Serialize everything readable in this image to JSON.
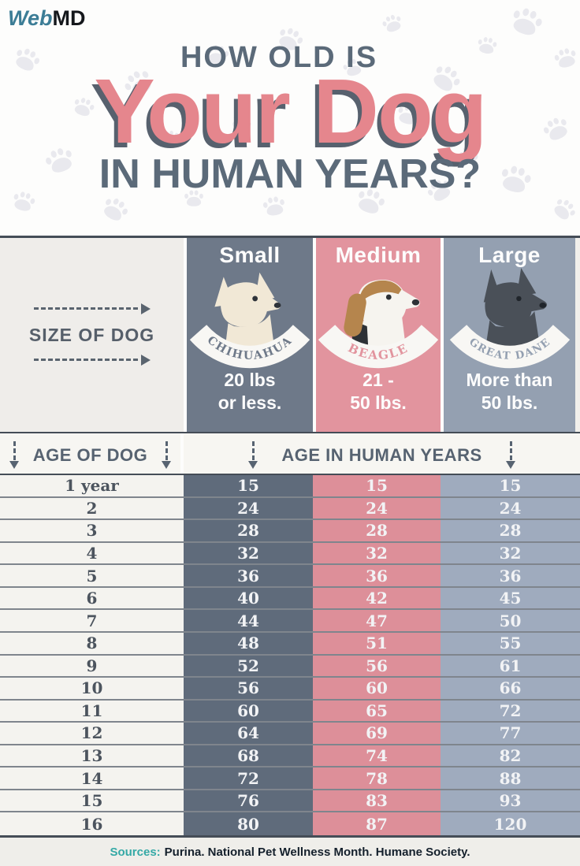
{
  "logo": {
    "part1": "Web",
    "part2": "MD"
  },
  "title": {
    "kicker": "HOW OLD IS",
    "main": "Your Dog",
    "subtitle": "IN HUMAN YEARS?"
  },
  "size_section": {
    "row_label": "SIZE OF DOG",
    "columns": [
      {
        "size": "Small",
        "breed": "CHIHUAHUA",
        "weight_line1": "20 lbs",
        "weight_line2": "or less.",
        "banner_color": "#6e7989",
        "cell_color": "#5f6b7b"
      },
      {
        "size": "Medium",
        "breed": "BEAGLE",
        "weight_line1": "21 -",
        "weight_line2": "50 lbs.",
        "banner_color": "#e2949e",
        "cell_color": "#dd8f99"
      },
      {
        "size": "Large",
        "breed": "GREAT DANE",
        "weight_line1": "More than",
        "weight_line2": "50 lbs.",
        "banner_color": "#94a0b1",
        "cell_color": "#9fabbe"
      }
    ]
  },
  "table": {
    "age_header": "AGE OF DOG",
    "values_header": "AGE IN HUMAN YEARS",
    "rows": [
      {
        "age": "1 year",
        "small": "15",
        "medium": "15",
        "large": "15"
      },
      {
        "age": "2",
        "small": "24",
        "medium": "24",
        "large": "24"
      },
      {
        "age": "3",
        "small": "28",
        "medium": "28",
        "large": "28"
      },
      {
        "age": "4",
        "small": "32",
        "medium": "32",
        "large": "32"
      },
      {
        "age": "5",
        "small": "36",
        "medium": "36",
        "large": "36"
      },
      {
        "age": "6",
        "small": "40",
        "medium": "42",
        "large": "45"
      },
      {
        "age": "7",
        "small": "44",
        "medium": "47",
        "large": "50"
      },
      {
        "age": "8",
        "small": "48",
        "medium": "51",
        "large": "55"
      },
      {
        "age": "9",
        "small": "52",
        "medium": "56",
        "large": "61"
      },
      {
        "age": "10",
        "small": "56",
        "medium": "60",
        "large": "66"
      },
      {
        "age": "11",
        "small": "60",
        "medium": "65",
        "large": "72"
      },
      {
        "age": "12",
        "small": "64",
        "medium": "69",
        "large": "77"
      },
      {
        "age": "13",
        "small": "68",
        "medium": "74",
        "large": "82"
      },
      {
        "age": "14",
        "small": "72",
        "medium": "78",
        "large": "88"
      },
      {
        "age": "15",
        "small": "76",
        "medium": "83",
        "large": "93"
      },
      {
        "age": "16",
        "small": "80",
        "medium": "87",
        "large": "120"
      }
    ]
  },
  "footer": {
    "sources_label": "Sources:",
    "sources_text": "Purina. National Pet Wellness Month. Humane Society."
  },
  "colors": {
    "title_pink": "#e5868d",
    "title_shadow": "#57616e",
    "title_gray": "#5b6a79",
    "left_panel": "#efedea",
    "row_separator": "#7f858d",
    "sources_teal": "#35a9a6"
  },
  "chart_data": {
    "type": "table",
    "title": "How Old Is Your Dog in Human Years?",
    "columns": [
      "Age of dog (years)",
      "Small: 20 lbs or less (Chihuahua)",
      "Medium: 21-50 lbs (Beagle)",
      "Large: more than 50 lbs (Great Dane)"
    ],
    "ages": [
      1,
      2,
      3,
      4,
      5,
      6,
      7,
      8,
      9,
      10,
      11,
      12,
      13,
      14,
      15,
      16
    ],
    "series": [
      {
        "name": "Small",
        "values": [
          15,
          24,
          28,
          32,
          36,
          40,
          44,
          48,
          52,
          56,
          60,
          64,
          68,
          72,
          76,
          80
        ]
      },
      {
        "name": "Medium",
        "values": [
          15,
          24,
          28,
          32,
          36,
          42,
          47,
          51,
          56,
          60,
          65,
          69,
          74,
          78,
          83,
          87
        ]
      },
      {
        "name": "Large",
        "values": [
          15,
          24,
          28,
          32,
          36,
          45,
          50,
          55,
          61,
          66,
          72,
          77,
          82,
          88,
          93,
          120
        ]
      }
    ],
    "sources": "Purina. National Pet Wellness Month. Humane Society."
  }
}
